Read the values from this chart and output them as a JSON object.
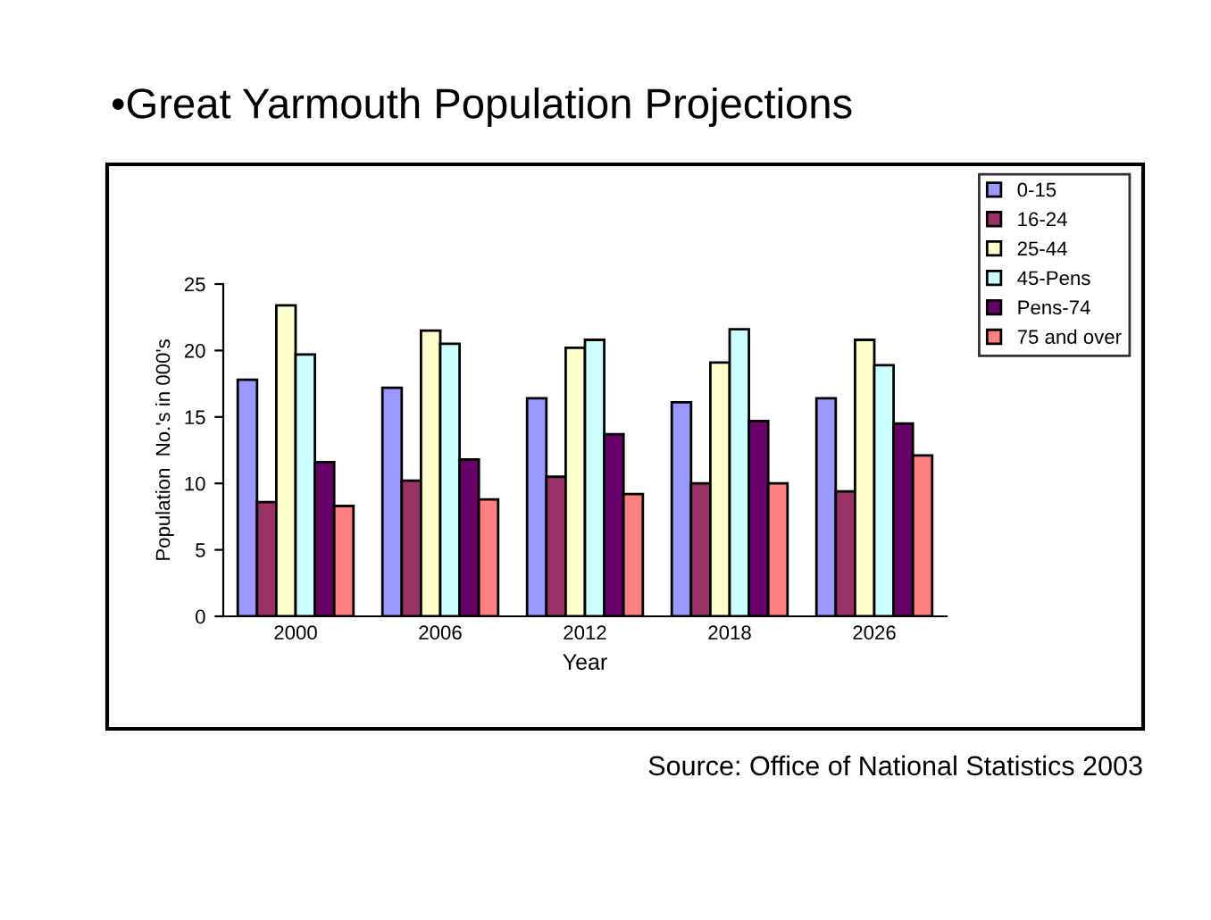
{
  "chart_data": {
    "type": "bar",
    "title": "•Great Yarmouth Population Projections",
    "xlabel": "Year",
    "ylabel": "Population  No.'s in 000's",
    "categories": [
      "2000",
      "2006",
      "2012",
      "2018",
      "2026"
    ],
    "series": [
      {
        "name": "0-15",
        "color": "#9999ff",
        "values": [
          17.8,
          17.2,
          16.4,
          16.1,
          16.4
        ]
      },
      {
        "name": "16-24",
        "color": "#993366",
        "values": [
          8.6,
          10.2,
          10.5,
          10.0,
          9.4
        ]
      },
      {
        "name": "25-44",
        "color": "#ffffcc",
        "values": [
          23.4,
          21.5,
          20.2,
          19.1,
          20.8
        ]
      },
      {
        "name": "45-Pens",
        "color": "#ccffff",
        "values": [
          19.7,
          20.5,
          20.8,
          21.6,
          18.9
        ]
      },
      {
        "name": "Pens-74",
        "color": "#660066",
        "values": [
          11.6,
          11.8,
          13.7,
          14.7,
          14.5
        ]
      },
      {
        "name": "75 and over",
        "color": "#ff8080",
        "values": [
          8.3,
          8.8,
          9.2,
          10.0,
          12.1
        ]
      }
    ],
    "ylim": [
      0,
      25
    ],
    "yticks": [
      0,
      5,
      10,
      15,
      20,
      25
    ],
    "grid": false,
    "legend": "top right",
    "annotations": [
      "Source: Office of National Statistics 2003"
    ]
  }
}
